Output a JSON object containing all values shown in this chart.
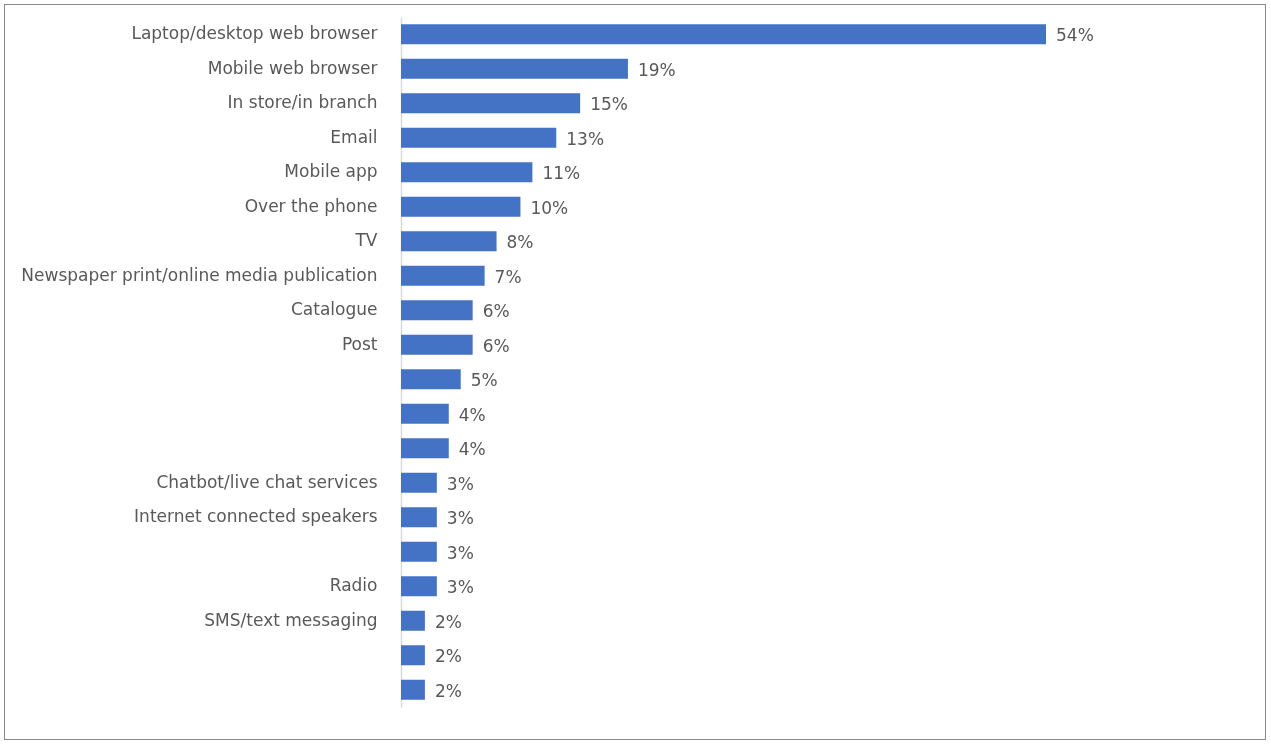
{
  "chart_data": {
    "type": "bar",
    "orientation": "horizontal",
    "categories": [
      "Laptop/desktop web browser",
      "Mobile web browser",
      "In store/in branch",
      "Email",
      "Mobile app",
      "Over the phone",
      "TV",
      "Newspaper print/online media publication",
      "Catalogue",
      "Post",
      null,
      null,
      null,
      "Chatbot/live chat services",
      "Internet connected speakers",
      null,
      "Radio",
      "SMS/text messaging",
      null,
      null
    ],
    "values": [
      54,
      19,
      15,
      13,
      11,
      10,
      8,
      7,
      6,
      6,
      5,
      4,
      4,
      3,
      3,
      3,
      3,
      2,
      2,
      2
    ],
    "value_labels": [
      "54%",
      "19%",
      "15%",
      "13%",
      "11%",
      "10%",
      "8%",
      "7%",
      "6%",
      "6%",
      "5%",
      "4%",
      "4%",
      "3%",
      "3%",
      "3%",
      "3%",
      "2%",
      "2%",
      "2%"
    ],
    "color": "#4472c4"
  }
}
